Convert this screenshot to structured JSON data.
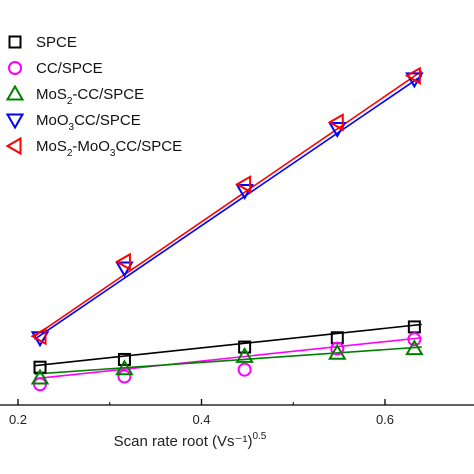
{
  "chart_data": {
    "type": "scatter",
    "title": "",
    "xlabel": "Scan rate root (Vs⁻¹)",
    "xlabel_sup": "0.5",
    "ylabel": "",
    "xlim": [
      0.2,
      0.65
    ],
    "ylim": [
      0,
      100
    ],
    "x_ticks": [
      {
        "value": 0.2,
        "label": "0.2"
      },
      {
        "value": 0.4,
        "label": "0.4"
      },
      {
        "value": 0.6,
        "label": "0.6"
      }
    ],
    "x": [
      0.224,
      0.316,
      0.447,
      0.548,
      0.632
    ],
    "series": [
      {
        "name": "SPCE",
        "marker": "square",
        "color": "#000000",
        "values": [
          8.0,
          10.5,
          14.5,
          17.5,
          21.0
        ],
        "fit": [
          8.5,
          21.8
        ]
      },
      {
        "name": "CC/SPCE",
        "marker": "circle",
        "color": "#ff00ff",
        "values": [
          2.5,
          5.0,
          7.2,
          14.0,
          17.0
        ],
        "fit": [
          4.3,
          17.5
        ]
      },
      {
        "name": "MoS2-CC/SPCE",
        "marker": "triangle-up",
        "color": "#008000",
        "values": [
          4.5,
          7.5,
          11.5,
          12.5,
          14.0
        ],
        "fit": [
          5.8,
          14.5
        ]
      },
      {
        "name": "MoO3CC/SPCE",
        "marker": "triangle-down",
        "color": "#0000ff",
        "values": [
          17.5,
          40.0,
          65.0,
          85.0,
          101.0
        ],
        "fit": [
          17.0,
          102.0
        ]
      },
      {
        "name": "MoS2-MoO3CC/SPCE",
        "marker": "triangle-left",
        "color": "#ff0000",
        "values": [
          18.0,
          42.0,
          67.0,
          87.0,
          102.0
        ],
        "fit": [
          18.0,
          103.5
        ]
      }
    ],
    "legend": {
      "position": "top-left",
      "entries": [
        {
          "marker": "square",
          "color": "#000000",
          "parts": [
            {
              "t": "SPCE"
            }
          ]
        },
        {
          "marker": "circle",
          "color": "#ff00ff",
          "parts": [
            {
              "t": "CC/SPCE"
            }
          ]
        },
        {
          "marker": "triangle-up",
          "color": "#008000",
          "parts": [
            {
              "t": "MoS"
            },
            {
              "t": "2",
              "sub": true
            },
            {
              "t": "-CC/SPCE"
            }
          ]
        },
        {
          "marker": "triangle-down",
          "color": "#0000ff",
          "parts": [
            {
              "t": "MoO"
            },
            {
              "t": "3",
              "sub": true
            },
            {
              "t": "CC/SPCE"
            }
          ]
        },
        {
          "marker": "triangle-left",
          "color": "#ff0000",
          "parts": [
            {
              "t": "MoS"
            },
            {
              "t": "2",
              "sub": true
            },
            {
              "t": "-MoO"
            },
            {
              "t": "3",
              "sub": true
            },
            {
              "t": "CC/SPCE"
            }
          ]
        }
      ]
    },
    "grid": false
  }
}
